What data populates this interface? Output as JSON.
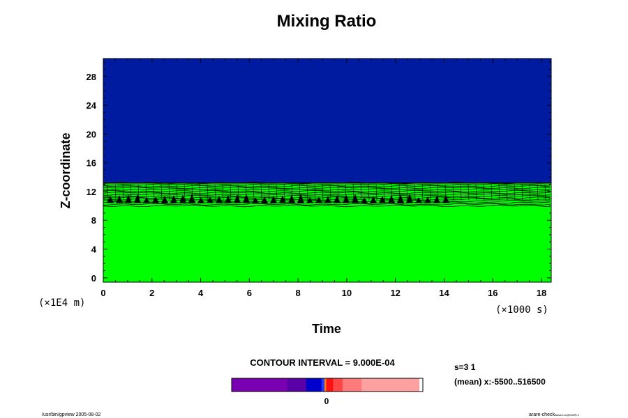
{
  "chart_data": {
    "type": "contour",
    "title": "Mixing Ratio",
    "xlabel": "Time",
    "ylabel": "Z-coordinate",
    "x_unit": "(×1000 s)",
    "y_unit": "(×1E4 m)",
    "xlim": [
      0,
      18.4
    ],
    "ylim": [
      -0.6,
      30.5
    ],
    "xticks": [
      "0",
      "2",
      "4",
      "6",
      "8",
      "10",
      "12",
      "14",
      "16",
      "18"
    ],
    "yticks": [
      "0",
      "4",
      "8",
      "12",
      "16",
      "20",
      "24",
      "28"
    ],
    "upper_region": {
      "y_range": [
        13.2,
        30.5
      ],
      "color": "#001aa0"
    },
    "lower_region": {
      "y_range": [
        -0.6,
        10.0
      ],
      "color": "#00ff00"
    },
    "transition_band": {
      "y_range": [
        10.0,
        13.2
      ],
      "color": "#00ff00",
      "line_color": "#000000"
    },
    "contour_interval": "CONTOUR INTERVAL = 9.000E-04",
    "colorbar": {
      "label": "0",
      "segments": [
        {
          "color": "#7a00b4",
          "fraction": 0.29
        },
        {
          "color": "#5a00a8",
          "fraction": 0.1
        },
        {
          "color": "#0000cd",
          "fraction": 0.08
        },
        {
          "color": "#1f3cff",
          "fraction": 0.015
        },
        {
          "color": "#ff7a00",
          "fraction": 0.01
        },
        {
          "color": "#ff1010",
          "fraction": 0.035
        },
        {
          "color": "#ff4545",
          "fraction": 0.05
        },
        {
          "color": "#ff7a7a",
          "fraction": 0.1
        },
        {
          "color": "#ffa0a0",
          "fraction": 0.3
        }
      ]
    },
    "annotation_s": "s=3 1",
    "annotation_mean": "(mean) x:-5500..516500",
    "footer_left": "/usr/bin/gpview 2005-08-02",
    "footer_right_main": "arare-check",
    "footer_right_sub": "Basic2.nc@MixRt,z"
  }
}
